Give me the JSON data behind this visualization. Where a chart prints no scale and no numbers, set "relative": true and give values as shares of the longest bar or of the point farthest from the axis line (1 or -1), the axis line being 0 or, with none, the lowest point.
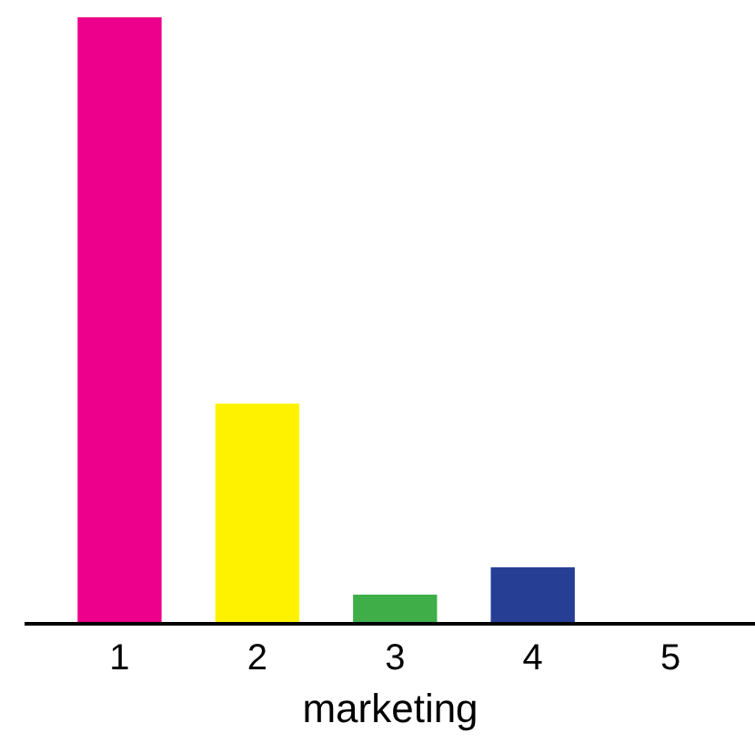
{
  "chart_data": {
    "type": "bar",
    "xlabel": "marketing",
    "categories": [
      "1",
      "2",
      "3",
      "4",
      "5"
    ],
    "relative": true,
    "values": [
      1,
      0.363,
      0.048,
      0.093,
      0
    ],
    "colors": [
      "#ec008c",
      "#fff200",
      "#3fae49",
      "#263f94",
      "#808080"
    ]
  }
}
